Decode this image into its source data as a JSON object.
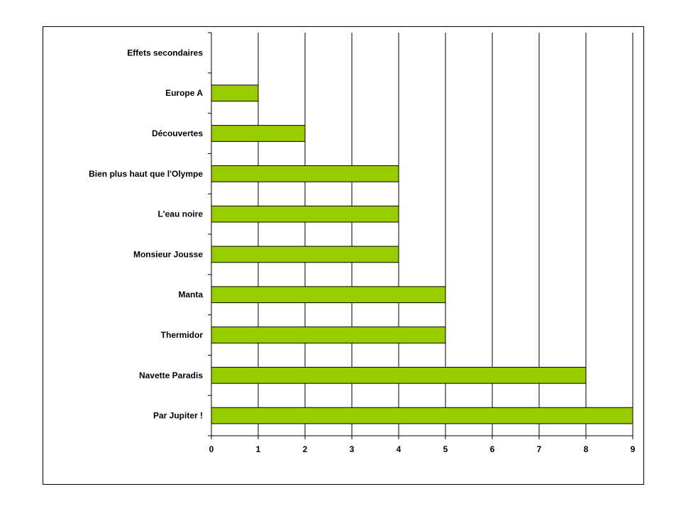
{
  "chart_data": {
    "type": "bar",
    "orientation": "horizontal",
    "categories": [
      "Effets secondaires",
      "Europe A",
      "Découvertes",
      "Bien plus haut que l'Olympe",
      "L'eau noire",
      "Monsieur Jousse",
      "Manta",
      "Thermidor",
      "Navette Paradis",
      "Par Jupiter !"
    ],
    "values": [
      0,
      1,
      2,
      4,
      4,
      4,
      5,
      5,
      8,
      9
    ],
    "xlim": [
      0,
      9
    ],
    "xticks": [
      "0",
      "1",
      "2",
      "3",
      "4",
      "5",
      "6",
      "7",
      "8",
      "9"
    ],
    "grid": "vertical",
    "legend": "none",
    "bar_color": "#99cc00"
  }
}
